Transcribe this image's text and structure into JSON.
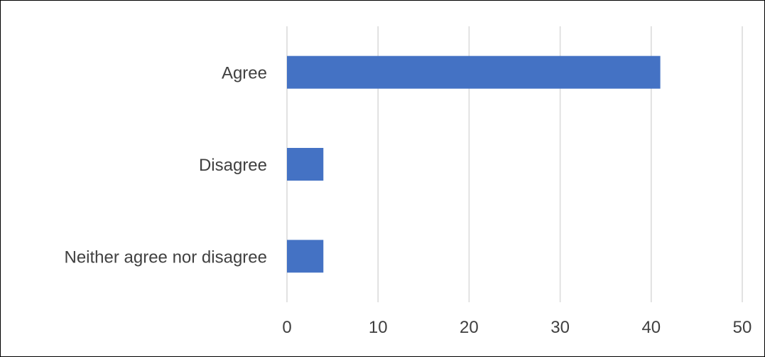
{
  "chart_data": {
    "type": "bar",
    "orientation": "horizontal",
    "categories": [
      "Agree",
      "Disagree",
      "Neither agree nor disagree"
    ],
    "values": [
      41,
      4,
      4
    ],
    "xlim": [
      0,
      50
    ],
    "xticks": [
      0,
      10,
      20,
      30,
      40,
      50
    ],
    "title": "",
    "xlabel": "",
    "ylabel": "",
    "grid": "vertical",
    "legend": "none",
    "colors": {
      "bar": "#4472C4",
      "grid": "#D9D9D9",
      "text": "#404040"
    }
  }
}
